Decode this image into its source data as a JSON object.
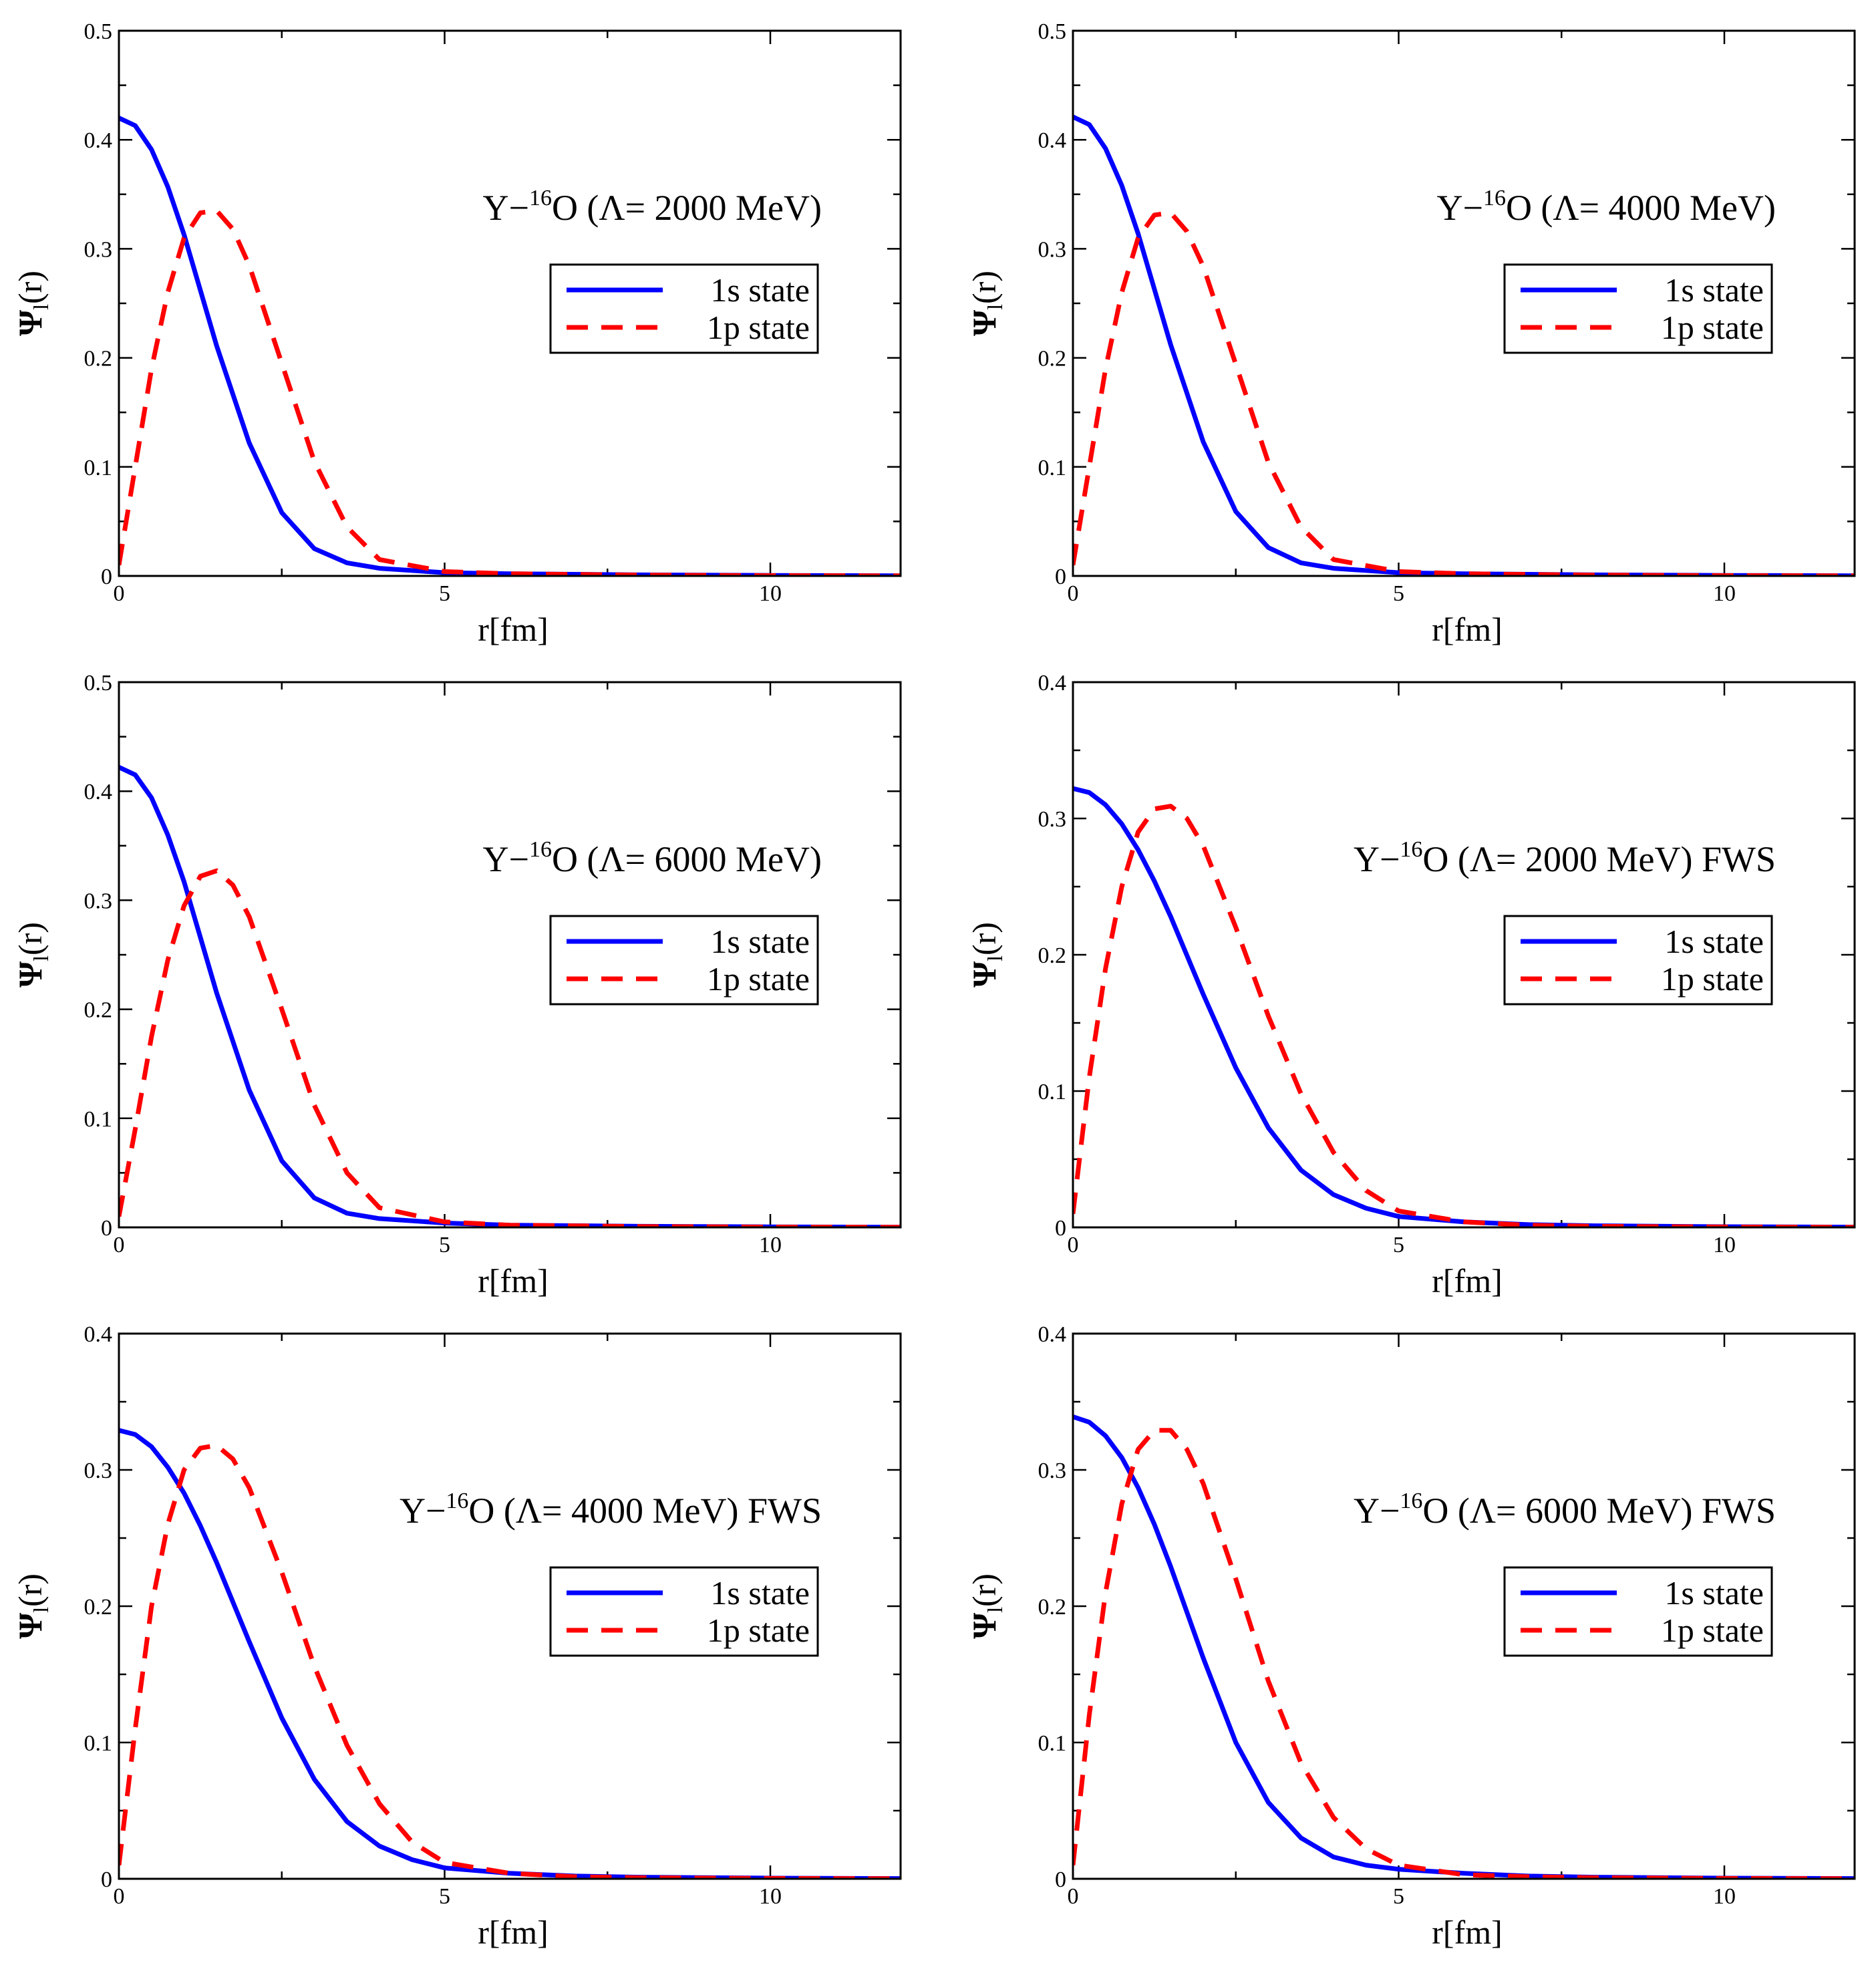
{
  "figure": {
    "panels": [
      {
        "annotation": {
          "prefix": "Y−",
          "sup": "16",
          "body": "O (Λ= 2000 MeV)"
        }
      },
      {
        "annotation": {
          "prefix": "Y−",
          "sup": "16",
          "body": "O (Λ= 4000 MeV)"
        }
      },
      {
        "annotation": {
          "prefix": "Y−",
          "sup": "16",
          "body": "O (Λ= 6000 MeV)"
        }
      },
      {
        "annotation": {
          "prefix": "Y−",
          "sup": "16",
          "body": "O (Λ= 2000 MeV) FWS"
        }
      },
      {
        "annotation": {
          "prefix": "Y−",
          "sup": "16",
          "body": "O (Λ= 4000 MeV) FWS"
        }
      },
      {
        "annotation": {
          "prefix": "Y−",
          "sup": "16",
          "body": "O (Λ= 6000 MeV) FWS"
        }
      }
    ]
  },
  "chart_data": [
    {
      "type": "line",
      "title": "",
      "annotation": "Y−16O (Λ= 2000 MeV)",
      "xlabel": "r[fm]",
      "ylabel": {
        "main": "Ψ",
        "sub": "l",
        "tail": "(r)"
      },
      "xlim": [
        0,
        12
      ],
      "ylim": [
        0,
        0.5
      ],
      "xticks": [
        0,
        5,
        10
      ],
      "yticks": [
        0,
        0.1,
        0.2,
        0.3,
        0.4,
        0.5
      ],
      "legend_position": "right-middle",
      "series": [
        {
          "name": "1s state",
          "color": "#0000ff",
          "dash": "solid",
          "x": [
            0,
            0.25,
            0.5,
            0.75,
            1.0,
            1.25,
            1.5,
            2.0,
            2.5,
            3.0,
            3.5,
            4.0,
            5.0,
            6.0,
            8.0,
            10.0,
            12.0
          ],
          "y": [
            0.42,
            0.413,
            0.391,
            0.357,
            0.313,
            0.262,
            0.211,
            0.122,
            0.058,
            0.025,
            0.012,
            0.007,
            0.003,
            0.002,
            0.001,
            0.0005,
            0.0002
          ]
        },
        {
          "name": "1p state",
          "color": "#ff0000",
          "dash": "dashed",
          "x": [
            0,
            0.25,
            0.5,
            0.75,
            1.0,
            1.25,
            1.5,
            1.75,
            2.0,
            2.5,
            3.0,
            3.5,
            4.0,
            5.0,
            6.0,
            8.0,
            10.0,
            12.0
          ],
          "y": [
            0.01,
            0.1,
            0.19,
            0.26,
            0.31,
            0.333,
            0.335,
            0.318,
            0.285,
            0.195,
            0.105,
            0.045,
            0.015,
            0.004,
            0.002,
            0.0008,
            0.0003,
            0.0001
          ]
        }
      ]
    },
    {
      "type": "line",
      "title": "",
      "annotation": "Y−16O (Λ= 4000 MeV)",
      "xlabel": "r[fm]",
      "ylabel": {
        "main": "Ψ",
        "sub": "l",
        "tail": "(r)"
      },
      "xlim": [
        0,
        12
      ],
      "ylim": [
        0,
        0.5
      ],
      "xticks": [
        0,
        5,
        10
      ],
      "yticks": [
        0,
        0.1,
        0.2,
        0.3,
        0.4,
        0.5
      ],
      "legend_position": "right-middle",
      "series": [
        {
          "name": "1s state",
          "color": "#0000ff",
          "dash": "solid",
          "x": [
            0,
            0.25,
            0.5,
            0.75,
            1.0,
            1.25,
            1.5,
            2.0,
            2.5,
            3.0,
            3.5,
            4.0,
            5.0,
            6.0,
            8.0,
            10.0,
            12.0
          ],
          "y": [
            0.421,
            0.414,
            0.392,
            0.358,
            0.314,
            0.263,
            0.212,
            0.123,
            0.059,
            0.026,
            0.012,
            0.007,
            0.003,
            0.002,
            0.001,
            0.0005,
            0.0002
          ]
        },
        {
          "name": "1p state",
          "color": "#ff0000",
          "dash": "dashed",
          "x": [
            0,
            0.25,
            0.5,
            0.75,
            1.0,
            1.25,
            1.5,
            1.75,
            2.0,
            2.5,
            3.0,
            3.5,
            4.0,
            5.0,
            6.0,
            8.0,
            10.0,
            12.0
          ],
          "y": [
            0.01,
            0.1,
            0.19,
            0.26,
            0.31,
            0.331,
            0.333,
            0.316,
            0.284,
            0.194,
            0.104,
            0.045,
            0.015,
            0.004,
            0.002,
            0.0008,
            0.0003,
            0.0001
          ]
        }
      ]
    },
    {
      "type": "line",
      "title": "",
      "annotation": "Y−16O (Λ= 6000 MeV)",
      "xlabel": "r[fm]",
      "ylabel": {
        "main": "Ψ",
        "sub": "l",
        "tail": "(r)"
      },
      "xlim": [
        0,
        12
      ],
      "ylim": [
        0,
        0.5
      ],
      "xticks": [
        0,
        5,
        10
      ],
      "yticks": [
        0,
        0.1,
        0.2,
        0.3,
        0.4,
        0.5
      ],
      "legend_position": "right-middle",
      "series": [
        {
          "name": "1s state",
          "color": "#0000ff",
          "dash": "solid",
          "x": [
            0,
            0.25,
            0.5,
            0.75,
            1.0,
            1.25,
            1.5,
            2.0,
            2.5,
            3.0,
            3.5,
            4.0,
            5.0,
            6.0,
            8.0,
            10.0,
            12.0
          ],
          "y": [
            0.422,
            0.415,
            0.394,
            0.36,
            0.317,
            0.266,
            0.215,
            0.126,
            0.061,
            0.027,
            0.013,
            0.008,
            0.004,
            0.002,
            0.001,
            0.0005,
            0.0002
          ]
        },
        {
          "name": "1p state",
          "color": "#ff0000",
          "dash": "dashed",
          "x": [
            0,
            0.25,
            0.5,
            0.75,
            1.0,
            1.25,
            1.5,
            1.75,
            2.0,
            2.5,
            3.0,
            3.5,
            4.0,
            5.0,
            6.0,
            8.0,
            10.0,
            12.0
          ],
          "y": [
            0.01,
            0.09,
            0.175,
            0.245,
            0.295,
            0.322,
            0.327,
            0.314,
            0.285,
            0.2,
            0.112,
            0.05,
            0.018,
            0.005,
            0.002,
            0.0008,
            0.0003,
            0.0001
          ]
        }
      ]
    },
    {
      "type": "line",
      "title": "",
      "annotation": "Y−16O (Λ= 2000 MeV) FWS",
      "xlabel": "r[fm]",
      "ylabel": {
        "main": "Ψ",
        "sub": "l",
        "tail": "(r)"
      },
      "xlim": [
        0,
        12
      ],
      "ylim": [
        0,
        0.4
      ],
      "xticks": [
        0,
        5,
        10
      ],
      "yticks": [
        0,
        0.1,
        0.2,
        0.3,
        0.4
      ],
      "legend_position": "right-middle",
      "series": [
        {
          "name": "1s state",
          "color": "#0000ff",
          "dash": "solid",
          "x": [
            0,
            0.25,
            0.5,
            0.75,
            1.0,
            1.25,
            1.5,
            2.0,
            2.5,
            3.0,
            3.5,
            4.0,
            4.5,
            5.0,
            6.0,
            7.0,
            8.0,
            10.0,
            12.0
          ],
          "y": [
            0.322,
            0.319,
            0.31,
            0.296,
            0.277,
            0.254,
            0.228,
            0.171,
            0.117,
            0.073,
            0.042,
            0.024,
            0.014,
            0.008,
            0.004,
            0.002,
            0.0012,
            0.0005,
            0.0002
          ]
        },
        {
          "name": "1p state",
          "color": "#ff0000",
          "dash": "dashed",
          "x": [
            0,
            0.25,
            0.5,
            0.75,
            1.0,
            1.25,
            1.5,
            1.75,
            2.0,
            2.5,
            3.0,
            3.5,
            4.0,
            4.5,
            5.0,
            6.0,
            7.0,
            8.0,
            10.0,
            12.0
          ],
          "y": [
            0.01,
            0.11,
            0.19,
            0.25,
            0.29,
            0.307,
            0.309,
            0.3,
            0.28,
            0.22,
            0.155,
            0.098,
            0.055,
            0.027,
            0.012,
            0.004,
            0.0015,
            0.0008,
            0.0003,
            0.0001
          ]
        }
      ]
    },
    {
      "type": "line",
      "title": "",
      "annotation": "Y−16O (Λ= 4000 MeV) FWS",
      "xlabel": "r[fm]",
      "ylabel": {
        "main": "Ψ",
        "sub": "l",
        "tail": "(r)"
      },
      "xlim": [
        0,
        12
      ],
      "ylim": [
        0,
        0.4
      ],
      "xticks": [
        0,
        5,
        10
      ],
      "yticks": [
        0,
        0.1,
        0.2,
        0.3,
        0.4
      ],
      "legend_position": "right-middle",
      "series": [
        {
          "name": "1s state",
          "color": "#0000ff",
          "dash": "solid",
          "x": [
            0,
            0.25,
            0.5,
            0.75,
            1.0,
            1.25,
            1.5,
            2.0,
            2.5,
            3.0,
            3.5,
            4.0,
            4.5,
            5.0,
            6.0,
            7.0,
            8.0,
            10.0,
            12.0
          ],
          "y": [
            0.329,
            0.326,
            0.317,
            0.302,
            0.283,
            0.259,
            0.232,
            0.174,
            0.118,
            0.073,
            0.042,
            0.024,
            0.014,
            0.008,
            0.004,
            0.002,
            0.0012,
            0.0005,
            0.0002
          ]
        },
        {
          "name": "1p state",
          "color": "#ff0000",
          "dash": "dashed",
          "x": [
            0,
            0.25,
            0.5,
            0.75,
            1.0,
            1.25,
            1.5,
            1.75,
            2.0,
            2.5,
            3.0,
            3.5,
            4.0,
            4.5,
            5.0,
            6.0,
            7.0,
            8.0,
            10.0,
            12.0
          ],
          "y": [
            0.01,
            0.11,
            0.2,
            0.26,
            0.3,
            0.316,
            0.318,
            0.308,
            0.287,
            0.225,
            0.156,
            0.098,
            0.055,
            0.027,
            0.012,
            0.004,
            0.0015,
            0.0008,
            0.0003,
            0.0001
          ]
        }
      ]
    },
    {
      "type": "line",
      "title": "",
      "annotation": "Y−16O (Λ= 6000 MeV) FWS",
      "xlabel": "r[fm]",
      "ylabel": {
        "main": "Ψ",
        "sub": "l",
        "tail": "(r)"
      },
      "xlim": [
        0,
        12
      ],
      "ylim": [
        0,
        0.4
      ],
      "xticks": [
        0,
        5,
        10
      ],
      "yticks": [
        0,
        0.1,
        0.2,
        0.3,
        0.4
      ],
      "legend_position": "right-middle",
      "series": [
        {
          "name": "1s state",
          "color": "#0000ff",
          "dash": "solid",
          "x": [
            0,
            0.25,
            0.5,
            0.75,
            1.0,
            1.25,
            1.5,
            2.0,
            2.5,
            3.0,
            3.5,
            4.0,
            4.5,
            5.0,
            6.0,
            7.0,
            8.0,
            10.0,
            12.0
          ],
          "y": [
            0.339,
            0.335,
            0.325,
            0.309,
            0.287,
            0.26,
            0.229,
            0.162,
            0.1,
            0.056,
            0.03,
            0.016,
            0.01,
            0.007,
            0.004,
            0.002,
            0.0012,
            0.0005,
            0.0002
          ]
        },
        {
          "name": "1p state",
          "color": "#ff0000",
          "dash": "dashed",
          "x": [
            0,
            0.25,
            0.5,
            0.75,
            1.0,
            1.25,
            1.5,
            1.75,
            2.0,
            2.5,
            3.0,
            3.5,
            4.0,
            4.5,
            5.0,
            6.0,
            7.0,
            8.0,
            10.0,
            12.0
          ],
          "y": [
            0.01,
            0.12,
            0.21,
            0.275,
            0.315,
            0.329,
            0.329,
            0.315,
            0.29,
            0.22,
            0.145,
            0.085,
            0.045,
            0.022,
            0.01,
            0.003,
            0.0015,
            0.0008,
            0.0003,
            0.0001
          ]
        }
      ]
    }
  ]
}
